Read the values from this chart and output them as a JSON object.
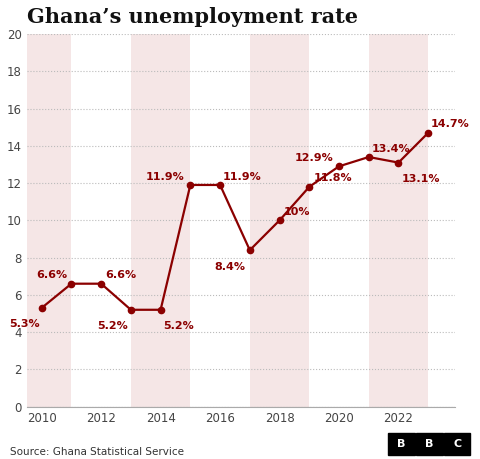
{
  "title": "Ghana’s unemployment rate",
  "years": [
    2010,
    2011,
    2012,
    2013,
    2014,
    2015,
    2016,
    2017,
    2018,
    2019,
    2020,
    2021,
    2022,
    2023
  ],
  "values": [
    5.3,
    6.6,
    6.6,
    5.2,
    5.2,
    11.9,
    11.9,
    8.4,
    10.0,
    11.8,
    12.9,
    13.4,
    13.1,
    14.7
  ],
  "labels": [
    "5.3%",
    "6.6%",
    "6.6%",
    "5.2%",
    "5.2%",
    "11.9%",
    "11.9%",
    "8.4%",
    "10%",
    "11.8%",
    "12.9%",
    "13.4%",
    "13.1%",
    "14.7%"
  ],
  "line_color": "#8B0000",
  "marker_color": "#8B0000",
  "background_col_odd": "#f5e6e6",
  "background_col_even": "#ffffff",
  "background_fig": "#ffffff",
  "grid_color": "#bbbbbb",
  "ylim": [
    0,
    20
  ],
  "yticks": [
    0,
    2,
    4,
    6,
    8,
    10,
    12,
    14,
    16,
    18,
    20
  ],
  "xticks": [
    2010,
    2012,
    2014,
    2016,
    2018,
    2020,
    2022
  ],
  "xlim_lo": 2009.5,
  "xlim_hi": 2023.9,
  "source_text": "Source: Ghana Statistical Service",
  "bbc_letters": [
    "B",
    "B",
    "C"
  ],
  "title_fontsize": 15,
  "label_fontsize": 8,
  "tick_fontsize": 8.5,
  "source_fontsize": 7.5,
  "label_offsets": {
    "2010": [
      -0.05,
      -0.85,
      "right"
    ],
    "2011": [
      -0.15,
      0.45,
      "right"
    ],
    "2012": [
      0.15,
      0.45,
      "left"
    ],
    "2013": [
      -0.1,
      -0.85,
      "right"
    ],
    "2014": [
      0.1,
      -0.85,
      "left"
    ],
    "2015": [
      -0.2,
      0.45,
      "right"
    ],
    "2016": [
      0.1,
      0.45,
      "left"
    ],
    "2017": [
      -0.15,
      -0.9,
      "right"
    ],
    "2018": [
      0.15,
      0.45,
      "left"
    ],
    "2019": [
      0.15,
      0.45,
      "left"
    ],
    "2020": [
      -0.2,
      0.45,
      "right"
    ],
    "2021": [
      0.1,
      0.45,
      "left"
    ],
    "2022": [
      0.1,
      -0.9,
      "left"
    ],
    "2023": [
      0.1,
      0.45,
      "left"
    ]
  }
}
